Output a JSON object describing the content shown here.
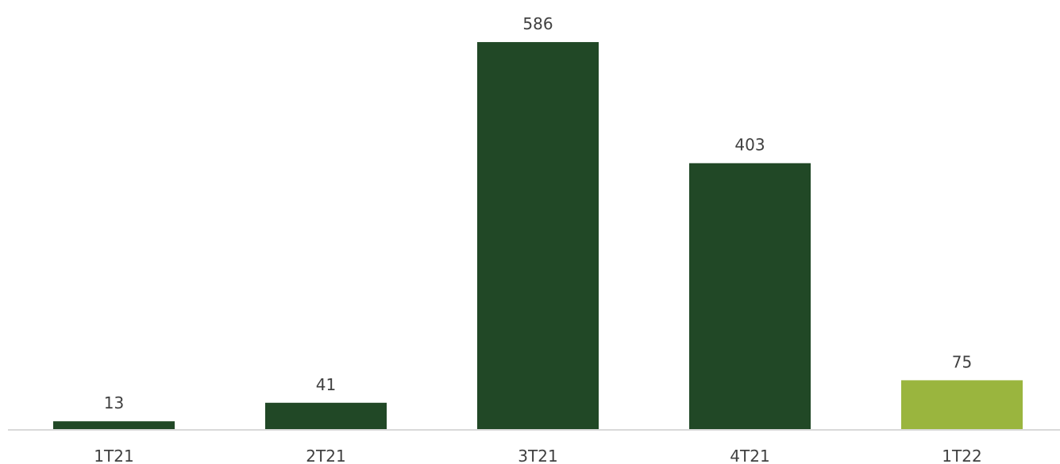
{
  "chart_data": {
    "type": "bar",
    "categories": [
      "1T21",
      "2T21",
      "3T21",
      "4T21",
      "1T22"
    ],
    "values": [
      13,
      41,
      586,
      403,
      75
    ],
    "ylim": [
      0,
      640
    ],
    "grid": false,
    "legend": "none",
    "data_labels": [
      "13",
      "41",
      "586",
      "403",
      "75"
    ],
    "colors": {
      "bar": "#214826",
      "highlight": "#9ab53e",
      "axis": "#d9d9d9",
      "label": "#404040"
    },
    "highlight_index": 4
  }
}
